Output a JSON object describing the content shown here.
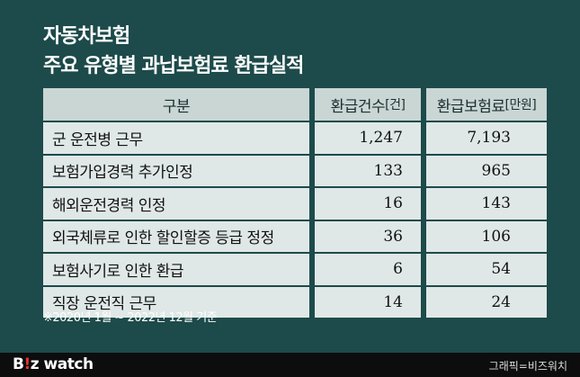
{
  "title": {
    "line1": "자동차보험",
    "line2": "주요 유형별 과납보험료 환급실적"
  },
  "table": {
    "headers": {
      "category": "구분",
      "count": "환급건수",
      "count_unit": "[건]",
      "amount": "환급보험료",
      "amount_unit": "[만원]"
    },
    "rows": [
      {
        "category": "군 운전병 근무",
        "count": "1,247",
        "amount": "7,193"
      },
      {
        "category": "보험가입경력 추가인정",
        "count": "133",
        "amount": "965"
      },
      {
        "category": "해외운전경력 인정",
        "count": "16",
        "amount": "143"
      },
      {
        "category": "외국체류로 인한 할인할증 등급 정정",
        "count": "36",
        "amount": "106"
      },
      {
        "category": "보험사기로 인한 환급",
        "count": "6",
        "amount": "54"
      },
      {
        "category": "직장 운전직 근무",
        "count": "14",
        "amount": "24"
      }
    ]
  },
  "note": "※2020년 1월 ~ 2022년 12월 기준",
  "footer": {
    "logo_b": "B",
    "logo_dot": "!",
    "logo_z": "z",
    "logo_watch": " watch",
    "credit": "그래픽=비즈워치"
  },
  "colors": {
    "background": "#1d4a4a",
    "header_cell": "#c9d6d4",
    "body_cell": "#dfe8e6",
    "logo_accent": "#e8312f"
  }
}
